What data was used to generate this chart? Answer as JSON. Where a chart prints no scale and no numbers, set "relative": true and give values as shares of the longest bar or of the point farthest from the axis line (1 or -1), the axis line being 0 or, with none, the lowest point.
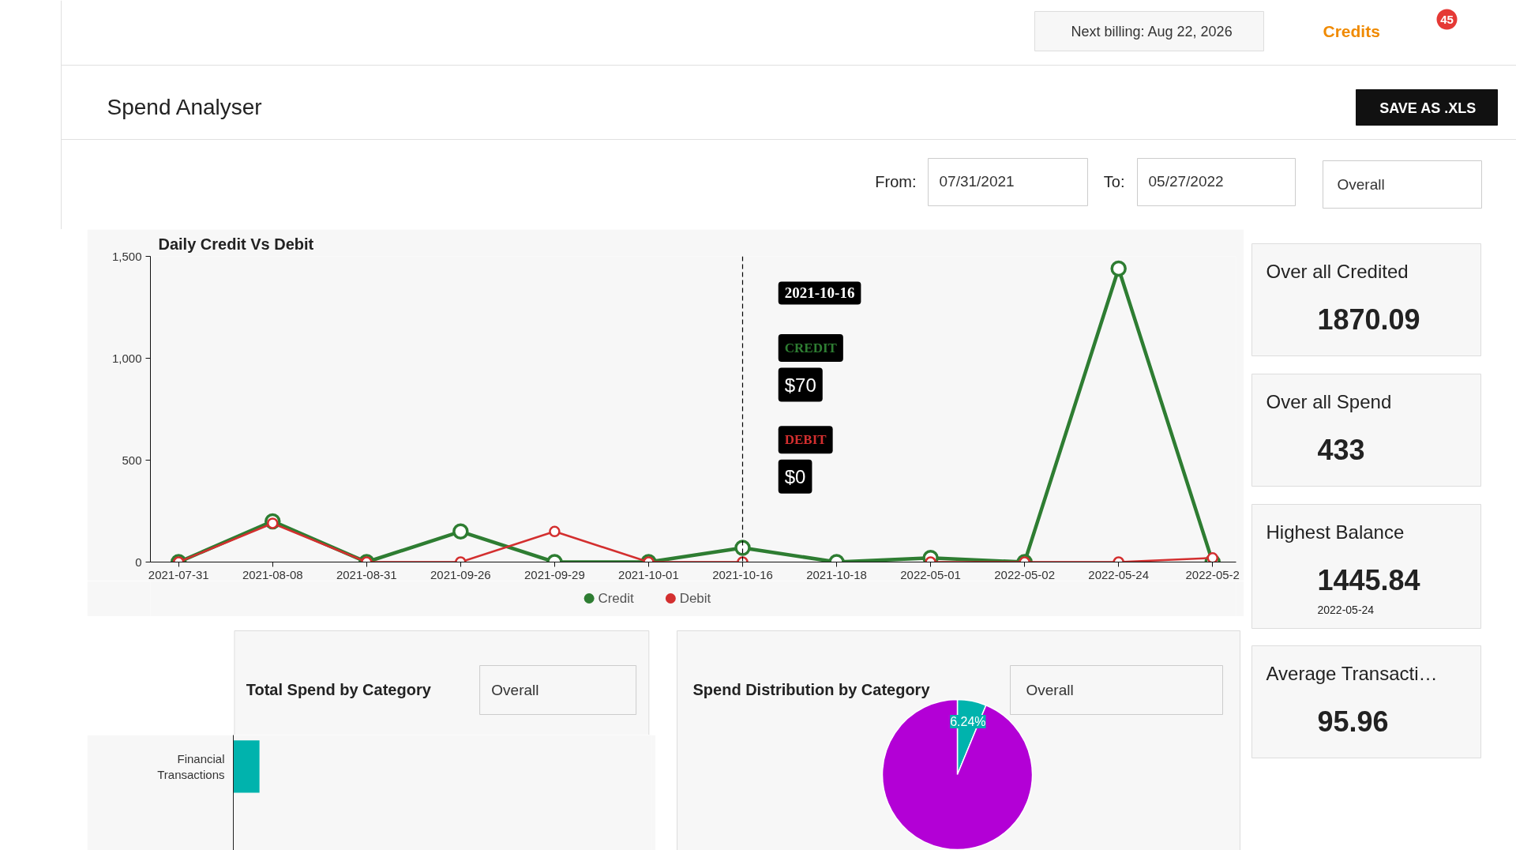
{
  "chart_data": [
    {
      "type": "other",
      "title": "Spend Analyser",
      "annotations": [
        "Next billing: Aug 22, 2026",
        "Credits",
        "45",
        "SAVE AS .XLS",
        "From:",
        "07/31/2021",
        "To:",
        "05/27/2022",
        "Overall"
      ]
    },
    {
      "type": "line",
      "title": "Daily Credit Vs Debit",
      "categories": [
        "2021-07-31",
        "2021-08-08",
        "2021-08-31",
        "2021-09-26",
        "2021-09-29",
        "2021-10-01",
        "2021-10-16",
        "2021-10-18",
        "2022-05-01",
        "2022-05-02",
        "2022-05-24",
        "2022-05-2"
      ],
      "series": [
        {
          "name": "Credit",
          "color": "#2e7d32",
          "values": [
            0,
            200,
            0,
            150,
            0,
            0,
            70,
            0,
            20,
            0,
            1440,
            0
          ]
        },
        {
          "name": "Debit",
          "color": "#d32f2f",
          "values": [
            0,
            190,
            0,
            0,
            150,
            0,
            0,
            null,
            0,
            0,
            0,
            20
          ]
        }
      ],
      "ylim": [
        0,
        1500
      ],
      "yticks": [
        0,
        500,
        {
          "value": 1000,
          "label": "1,000"
        },
        {
          "value": 1500,
          "label": "1,500"
        }
      ],
      "marker": "circle",
      "legend": "bottom",
      "ref_lines": [
        {
          "axis": "x",
          "value": "2021-10-16",
          "line_style": "dashed",
          "color": "#000000"
        }
      ],
      "annotations": [
        "2021-10-16",
        "CREDIT",
        "$70",
        "DEBIT",
        "$0"
      ]
    },
    {
      "type": "other",
      "annotations": [
        "Over all Credited",
        "1870.09",
        "Over all Spend",
        "433",
        "Highest Balance",
        "1445.84",
        "2022-05-24",
        "Average Transacti…",
        "95.96"
      ]
    },
    {
      "type": "bar",
      "title": "Total Spend by Category",
      "orientation": "horizontal",
      "categories": [
        "Financial Transactions"
      ],
      "values": [
        1
      ],
      "color": "#00b3ad",
      "relative": true,
      "annotations": [
        "Overall"
      ]
    },
    {
      "type": "pie",
      "title": "Spend Distribution by Category",
      "categories": [
        null,
        null
      ],
      "values": [
        6.24,
        93.76
      ],
      "colors": [
        "#00b3ad",
        "#b300d6"
      ],
      "value_labels": [
        "6.24%",
        null
      ],
      "annotations": [
        "Overall"
      ]
    }
  ]
}
